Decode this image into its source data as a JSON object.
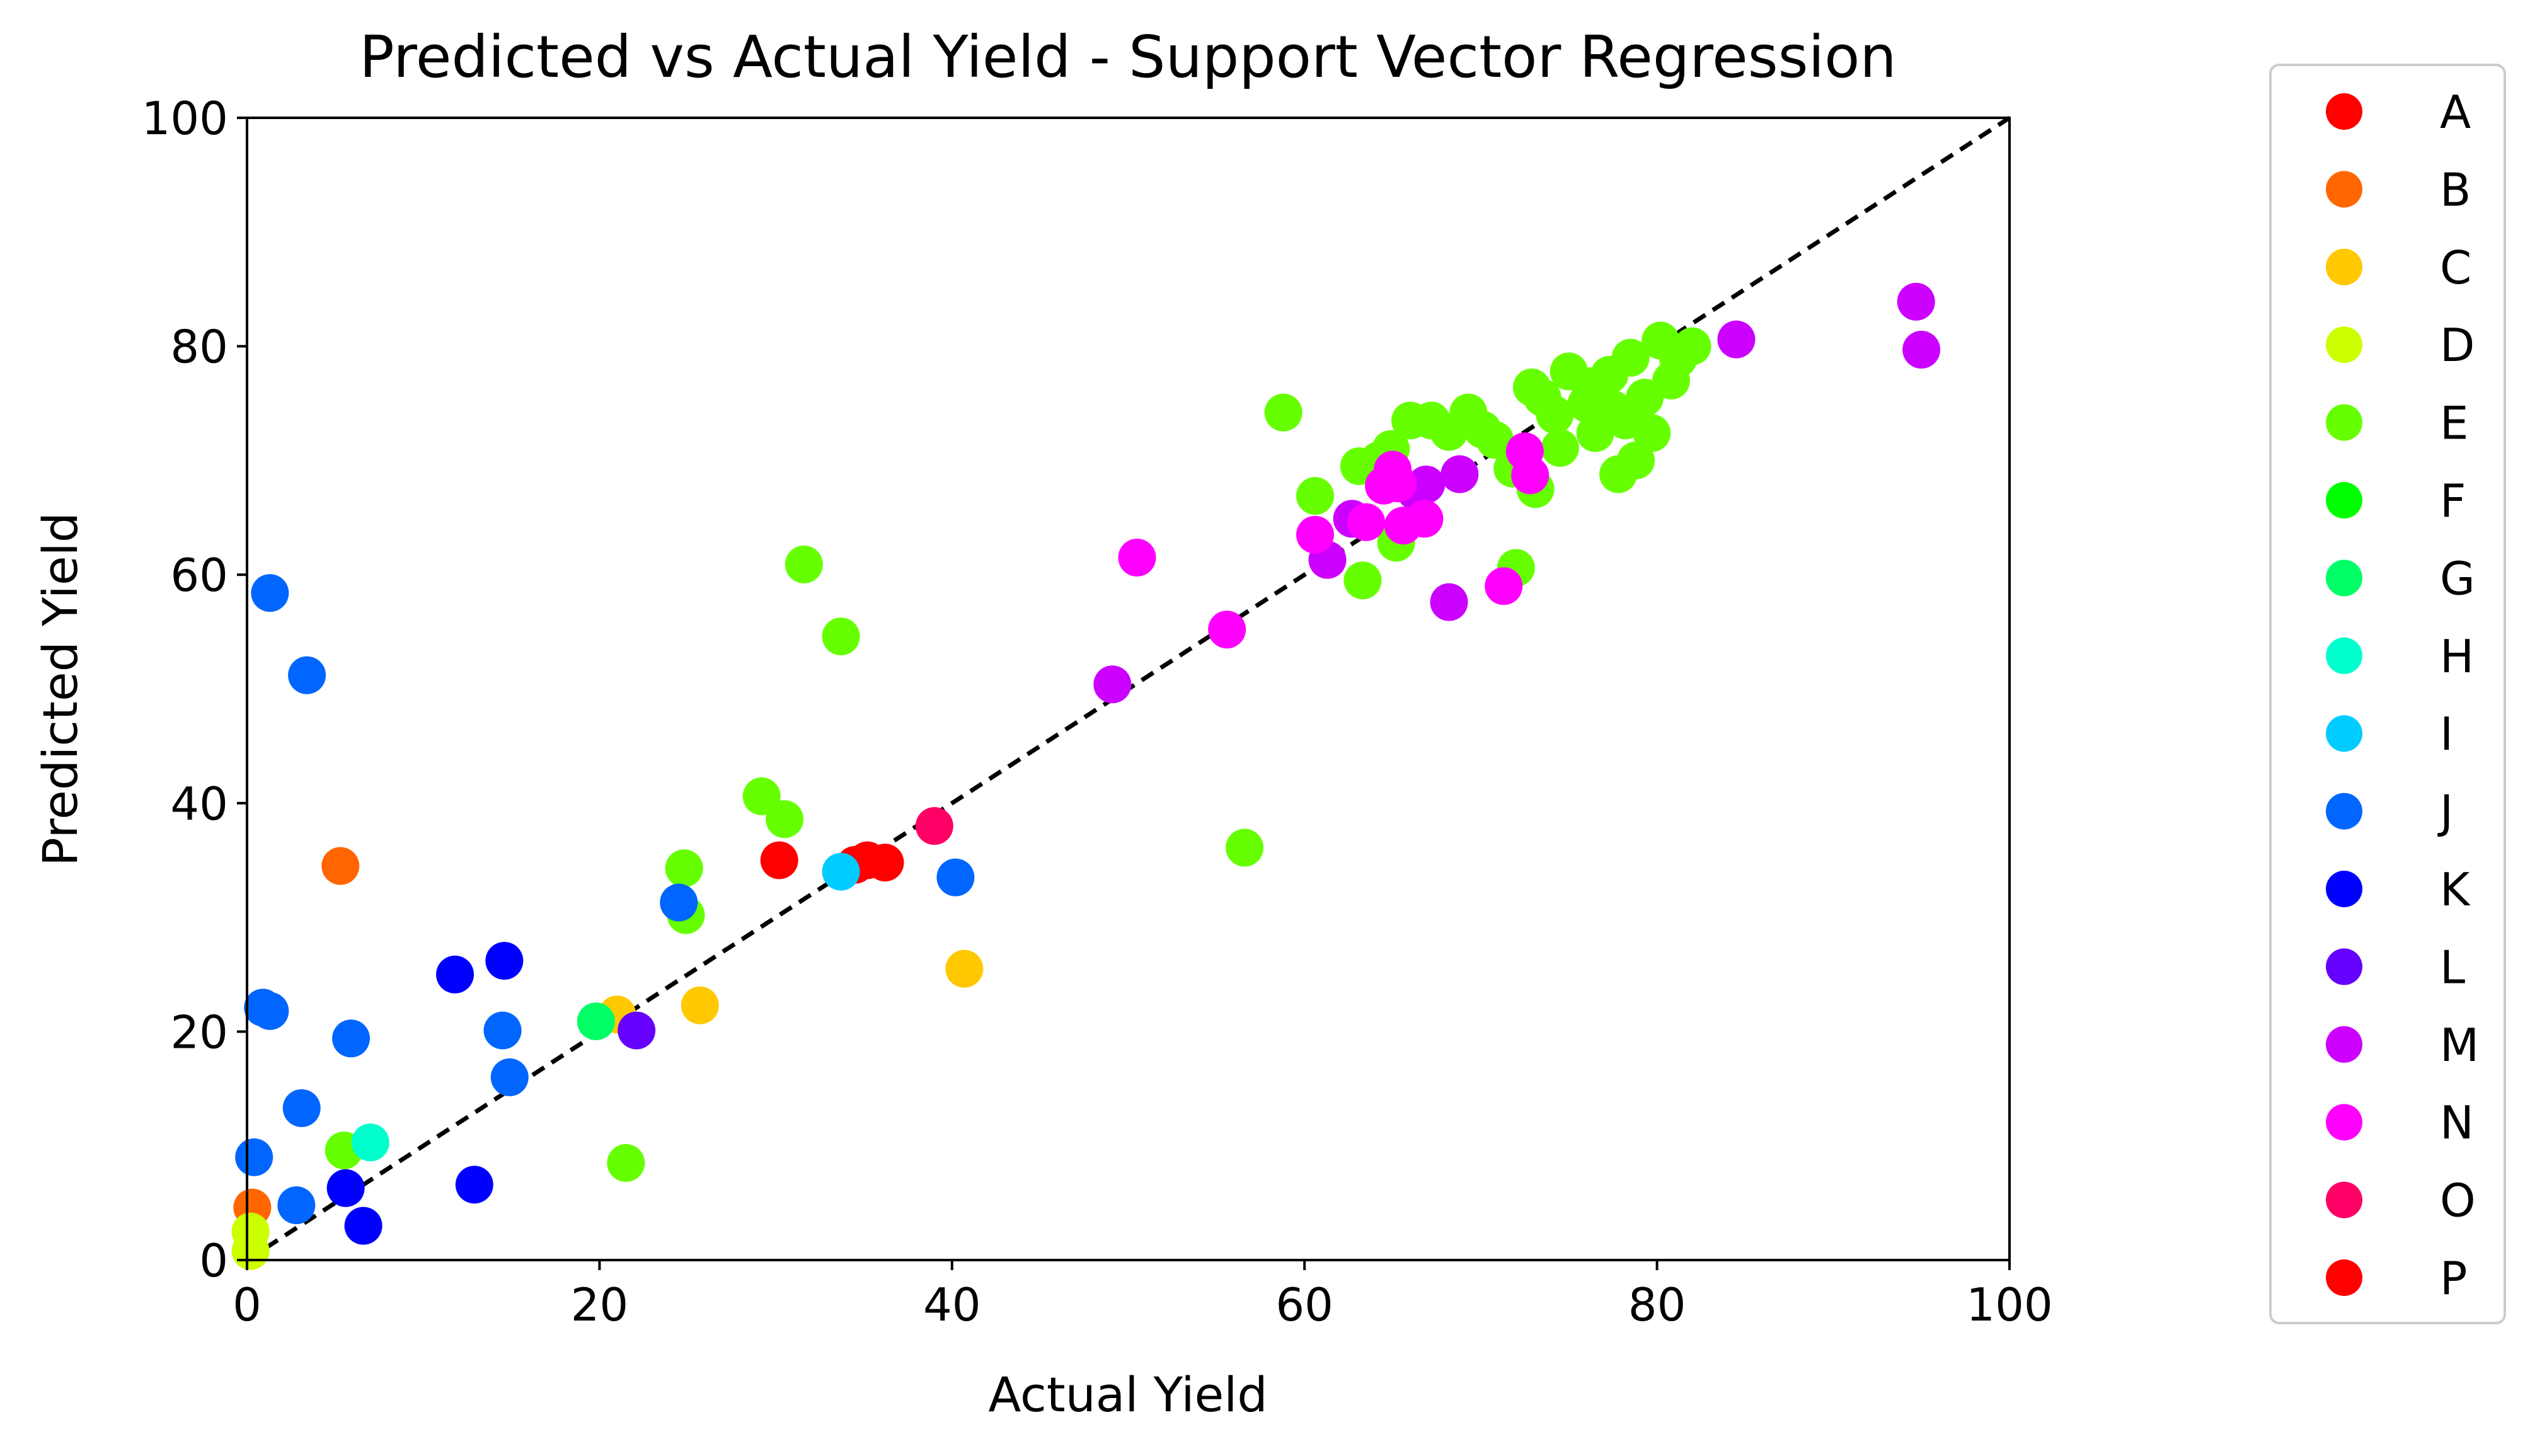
{
  "chart_data": {
    "type": "scatter",
    "title": "Predicted vs Actual Yield -  Support Vector Regression",
    "xlabel": "Actual Yield",
    "ylabel": "Predicted Yield",
    "xlim": [
      0,
      100
    ],
    "ylim": [
      0,
      100
    ],
    "xticks": [
      "0",
      "20",
      "40",
      "60",
      "80",
      "100"
    ],
    "yticks": [
      "0",
      "20",
      "40",
      "60",
      "80",
      "100"
    ],
    "grid": false,
    "legend_position": "outside-right",
    "reference_line": {
      "style": "dashed",
      "color": "#000000",
      "from": [
        0,
        0
      ],
      "to": [
        100,
        100
      ]
    },
    "series": [
      {
        "name": "A",
        "color": "#ff0000",
        "points": [
          [
            30.2,
            35.0
          ],
          [
            34.5,
            34.6
          ],
          [
            35.2,
            35.0
          ],
          [
            36.2,
            34.8
          ]
        ]
      },
      {
        "name": "B",
        "color": "#ff6600",
        "points": [
          [
            5.3,
            34.5
          ],
          [
            0.3,
            4.6
          ]
        ]
      },
      {
        "name": "C",
        "color": "#ffc800",
        "points": [
          [
            40.7,
            25.5
          ],
          [
            25.7,
            22.3
          ],
          [
            21.0,
            21.5
          ]
        ]
      },
      {
        "name": "D",
        "color": "#ccff00",
        "points": [
          [
            0.2,
            2.5
          ],
          [
            0.2,
            0.8
          ]
        ]
      },
      {
        "name": "E",
        "color": "#66ff00",
        "points": [
          [
            58.8,
            74.2
          ],
          [
            60.6,
            66.9
          ],
          [
            63.3,
            59.5
          ],
          [
            63.1,
            69.5
          ],
          [
            64.2,
            70.0
          ],
          [
            65.2,
            62.8
          ],
          [
            64.9,
            71.0
          ],
          [
            66.0,
            73.5
          ],
          [
            67.2,
            73.5
          ],
          [
            68.2,
            72.5
          ],
          [
            69.3,
            74.2
          ],
          [
            70.1,
            72.7
          ],
          [
            70.8,
            71.8
          ],
          [
            71.8,
            69.3
          ],
          [
            72.0,
            60.6
          ],
          [
            72.9,
            76.4
          ],
          [
            73.5,
            75.5
          ],
          [
            73.1,
            67.5
          ],
          [
            74.2,
            74.0
          ],
          [
            74.5,
            71.1
          ],
          [
            75.0,
            77.8
          ],
          [
            76.0,
            75.0
          ],
          [
            76.5,
            72.4
          ],
          [
            77.3,
            77.5
          ],
          [
            77.8,
            68.8
          ],
          [
            78.2,
            73.5
          ],
          [
            78.5,
            79.0
          ],
          [
            78.8,
            70.0
          ],
          [
            79.3,
            75.5
          ],
          [
            79.7,
            72.4
          ],
          [
            80.2,
            80.5
          ],
          [
            80.8,
            77.0
          ],
          [
            81.2,
            78.9
          ],
          [
            82.0,
            80.0
          ],
          [
            77.5,
            74.5
          ],
          [
            76.2,
            76.5
          ],
          [
            31.6,
            60.9
          ],
          [
            33.7,
            54.6
          ],
          [
            29.2,
            40.6
          ],
          [
            30.5,
            38.6
          ],
          [
            24.8,
            34.3
          ],
          [
            24.9,
            30.2
          ],
          [
            56.6,
            36.1
          ],
          [
            21.5,
            8.5
          ],
          [
            5.5,
            9.6
          ]
        ]
      },
      {
        "name": "F",
        "color": "#00ff00",
        "points": []
      },
      {
        "name": "G",
        "color": "#00ff66",
        "points": [
          [
            19.8,
            20.9
          ]
        ]
      },
      {
        "name": "H",
        "color": "#00ffcc",
        "points": [
          [
            7.0,
            10.3
          ]
        ]
      },
      {
        "name": "I",
        "color": "#00ccff",
        "points": [
          [
            33.7,
            34.0
          ]
        ]
      },
      {
        "name": "J",
        "color": "#0066ff",
        "points": [
          [
            1.3,
            58.4
          ],
          [
            3.4,
            51.2
          ],
          [
            0.9,
            22.1
          ],
          [
            1.3,
            21.8
          ],
          [
            5.9,
            19.4
          ],
          [
            3.1,
            13.3
          ],
          [
            0.4,
            9.0
          ],
          [
            2.8,
            4.8
          ],
          [
            24.5,
            31.3
          ],
          [
            40.2,
            33.5
          ],
          [
            14.5,
            20.1
          ],
          [
            14.9,
            16.0
          ]
        ]
      },
      {
        "name": "K",
        "color": "#0000ff",
        "points": [
          [
            11.8,
            25.0
          ],
          [
            14.6,
            26.2
          ],
          [
            12.9,
            6.6
          ],
          [
            5.6,
            6.3
          ],
          [
            6.6,
            3.0
          ]
        ]
      },
      {
        "name": "L",
        "color": "#6600ff",
        "points": [
          [
            22.1,
            20.1
          ]
        ]
      },
      {
        "name": "M",
        "color": "#cc00ff",
        "points": [
          [
            94.7,
            83.9
          ],
          [
            95.0,
            79.7
          ],
          [
            84.5,
            80.6
          ],
          [
            49.1,
            50.4
          ],
          [
            61.3,
            61.3
          ],
          [
            62.7,
            64.9
          ],
          [
            66.3,
            67.3
          ],
          [
            66.9,
            67.9
          ],
          [
            68.8,
            68.8
          ],
          [
            68.2,
            57.6
          ]
        ]
      },
      {
        "name": "N",
        "color": "#ff00ff",
        "points": [
          [
            50.5,
            61.5
          ],
          [
            55.6,
            55.2
          ],
          [
            60.6,
            63.5
          ],
          [
            63.5,
            64.6
          ],
          [
            64.5,
            67.8
          ],
          [
            65.0,
            69.2
          ],
          [
            65.3,
            68.0
          ],
          [
            65.6,
            64.3
          ],
          [
            66.8,
            64.9
          ],
          [
            71.3,
            59.0
          ],
          [
            72.5,
            70.8
          ],
          [
            72.8,
            68.7
          ]
        ]
      },
      {
        "name": "O",
        "color": "#ff0066",
        "points": [
          [
            39.0,
            38.0
          ]
        ]
      },
      {
        "name": "P",
        "color": "#ff0000",
        "points": []
      }
    ]
  }
}
